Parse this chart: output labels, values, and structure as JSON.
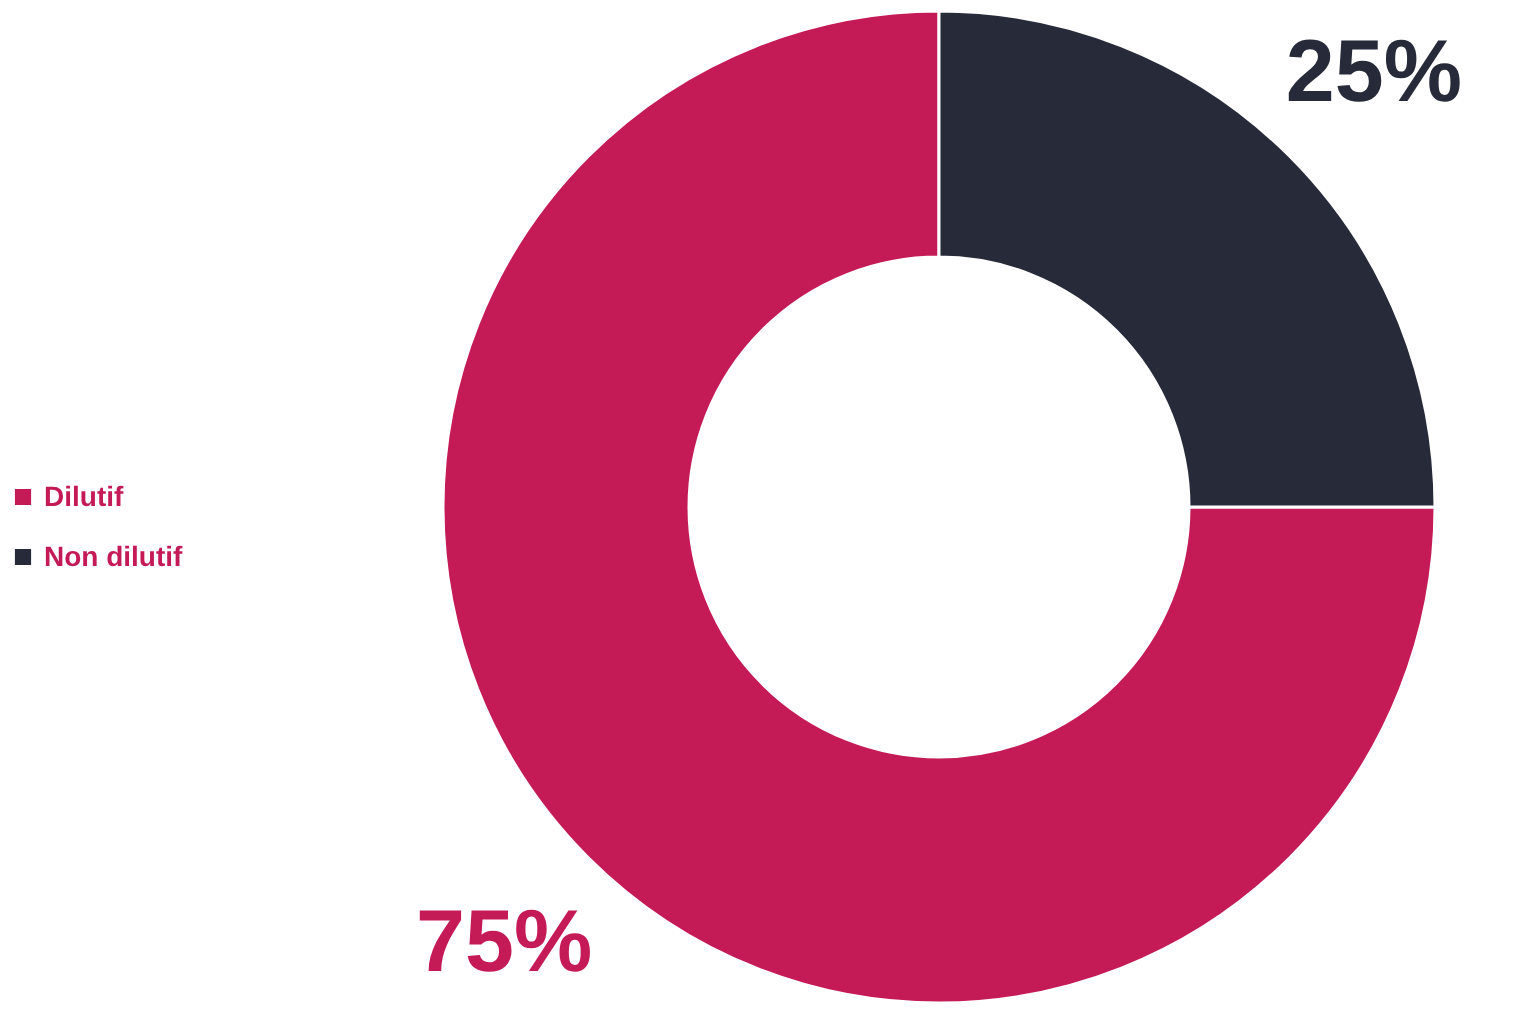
{
  "chart_data": {
    "type": "donut",
    "categories": [
      "Dilutif",
      "Non dilutif"
    ],
    "values": [
      75,
      25
    ],
    "colors": [
      "#c41a55",
      "#272a38"
    ],
    "value_labels": [
      "75%",
      "25%"
    ],
    "legend": "left"
  }
}
